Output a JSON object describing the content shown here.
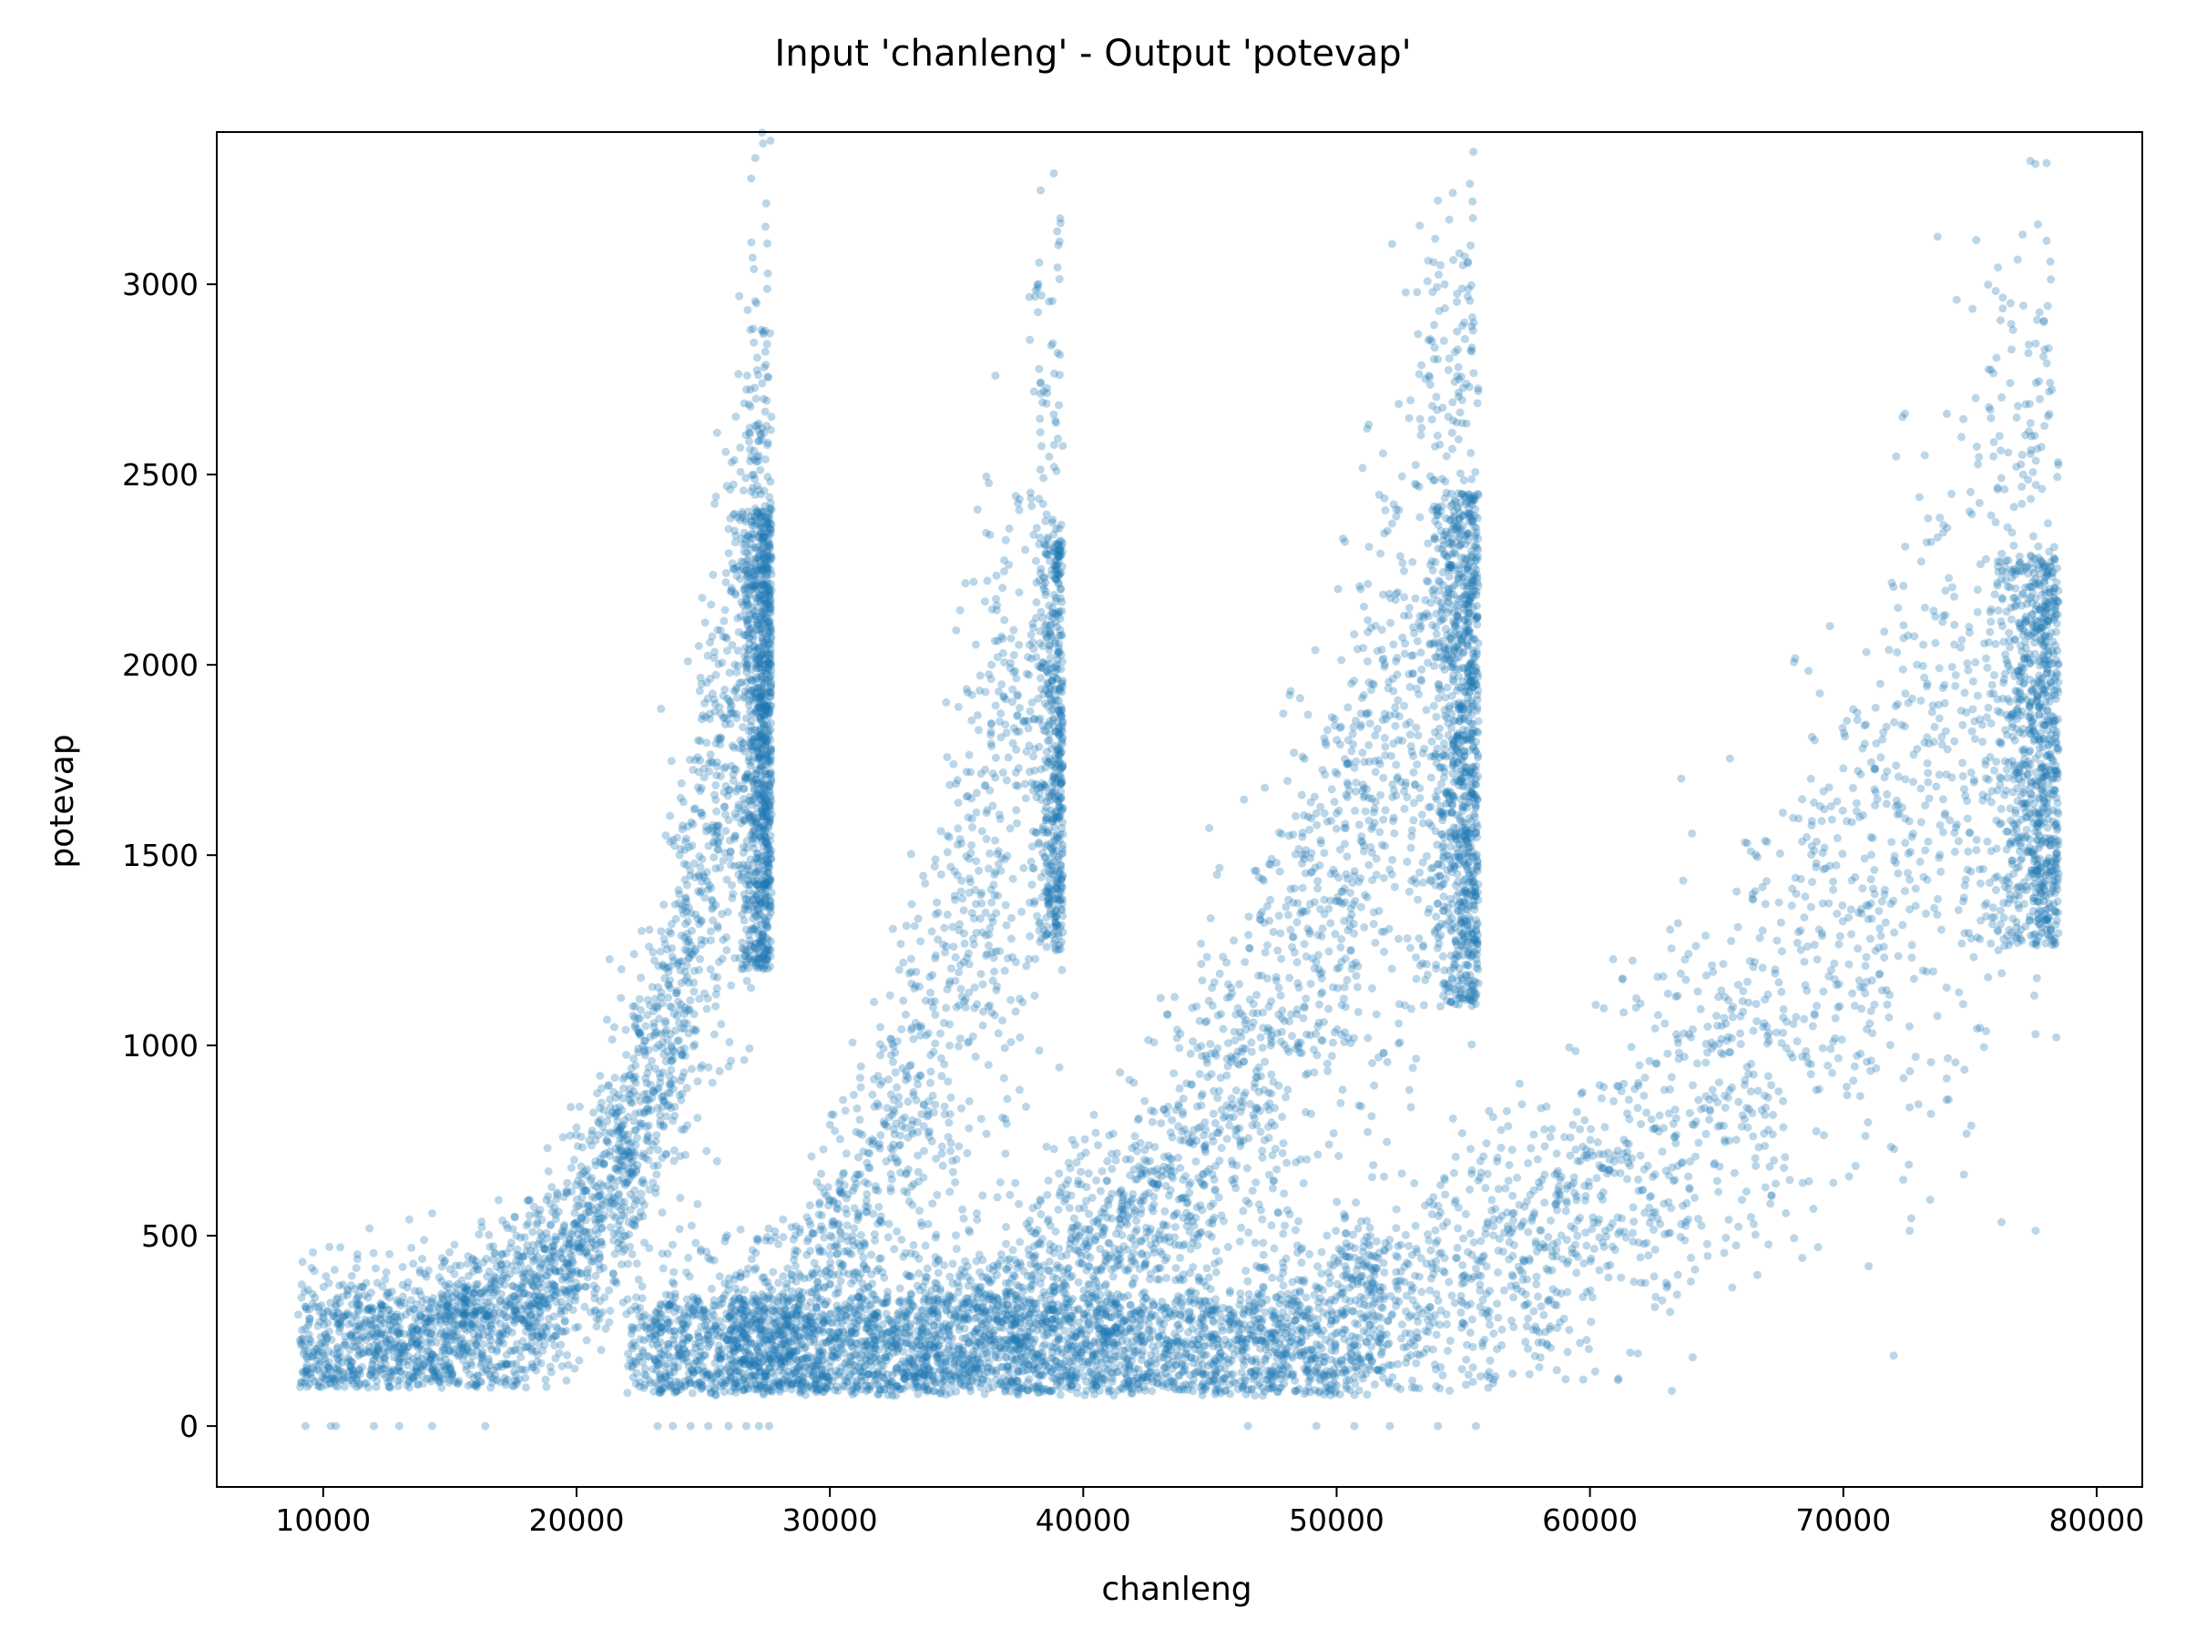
{
  "chart_data": {
    "type": "scatter",
    "title": "Input 'chanleng' - Output 'potevap'",
    "xlabel": "chanleng",
    "ylabel": "potevap",
    "xlim": [
      5800,
      81800
    ],
    "ylim": [
      -160,
      3400
    ],
    "xticks": [
      10000,
      20000,
      30000,
      40000,
      50000,
      60000,
      70000,
      80000
    ],
    "xtick_labels": [
      "10000",
      "20000",
      "30000",
      "40000",
      "50000",
      "60000",
      "70000",
      "80000"
    ],
    "yticks": [
      0,
      500,
      1000,
      1500,
      2000,
      2500,
      3000
    ],
    "ytick_labels": [
      "0",
      "500",
      "1000",
      "1500",
      "2000",
      "2500",
      "3000"
    ],
    "grid": false,
    "series": [
      {
        "name": "",
        "color": "#1f77b4",
        "opacity": 0.3,
        "clusters": [
          {
            "id": "band-1",
            "x_range": [
              9000,
              27700
            ],
            "y_floor": 100,
            "y_peak": 2600,
            "y_min_at_end": 1200
          },
          {
            "id": "band-2",
            "x_range": [
              23000,
              39200
            ],
            "y_floor": 90,
            "y_peak": 2600,
            "y_min_at_end": 1250
          },
          {
            "id": "band-3",
            "x_range": [
              26000,
              55600
            ],
            "y_floor": 90,
            "y_peak": 2700,
            "y_min_at_end": 1100
          },
          {
            "id": "band-4",
            "x_range": [
              37000,
              78500
            ],
            "y_floor": 90,
            "y_peak": 2500,
            "y_min_at_end": 1250
          }
        ],
        "outliers": [
          [
            26900,
            3110
          ],
          [
            26950,
            3070
          ],
          [
            27000,
            3040
          ],
          [
            27100,
            2950
          ],
          [
            27300,
            2880
          ],
          [
            38200,
            2990
          ],
          [
            54000,
            3220
          ],
          [
            54100,
            3050
          ],
          [
            54050,
            2930
          ],
          [
            76600,
            2950
          ],
          [
            76700,
            2880
          ],
          [
            71000,
            420
          ],
          [
            69000,
            470
          ]
        ],
        "zero_points": [
          9300,
          10300,
          10500,
          12000,
          13000,
          14300,
          16400,
          23200,
          23800,
          24500,
          25200,
          26000,
          26700,
          27200,
          27600,
          46500,
          49200,
          50700,
          52100,
          54000,
          55500
        ]
      }
    ]
  }
}
